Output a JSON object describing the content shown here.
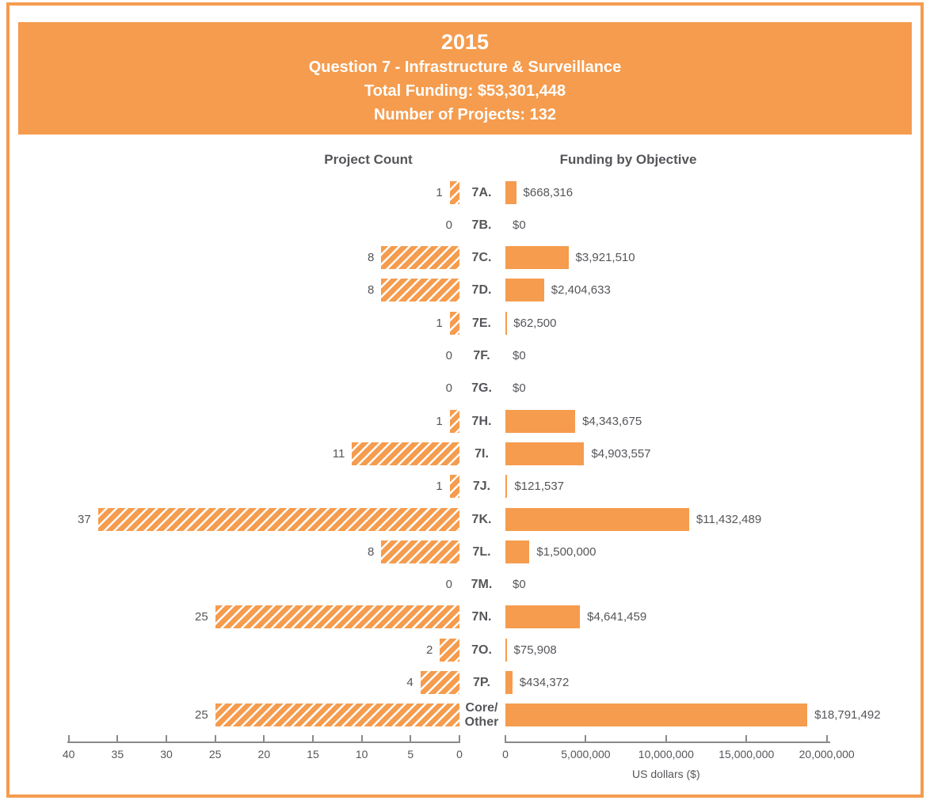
{
  "page": {
    "background": "#FFFFFF",
    "border_color": "#F59C4E"
  },
  "header": {
    "title": "2015",
    "subtitle": "Question 7 - Infrastructure & Surveillance",
    "total_funding": "Total Funding: $53,301,448",
    "projects": "Number of Projects: 132",
    "bg_color": "#F59C4E",
    "text_color": "#FFFFFF"
  },
  "chart_data": {
    "type": "bar",
    "layout": "back-to-back-horizontal",
    "left_title": "Project Count",
    "right_title": "Funding by Objective",
    "categories": [
      "7A.",
      "7B.",
      "7C.",
      "7D.",
      "7E.",
      "7F.",
      "7G.",
      "7H.",
      "7I.",
      "7J.",
      "7K.",
      "7L.",
      "7M.",
      "7N.",
      "7O.",
      "7P.",
      "Core/\nOther"
    ],
    "series": [
      {
        "name": "Project Count",
        "style": "hatched",
        "values": [
          1,
          0,
          8,
          8,
          1,
          0,
          0,
          1,
          11,
          1,
          37,
          8,
          0,
          25,
          2,
          4,
          25
        ],
        "labels": [
          "1",
          "0",
          "8",
          "8",
          "1",
          "0",
          "0",
          "1",
          "11",
          "1",
          "37",
          "8",
          "0",
          "25",
          "2",
          "4",
          "25"
        ],
        "axis_ticks": [
          40,
          35,
          30,
          25,
          20,
          15,
          10,
          5,
          0
        ],
        "axis_max": 40,
        "direction": "right-to-left"
      },
      {
        "name": "Funding by Objective",
        "style": "solid",
        "values": [
          668316,
          0,
          3921510,
          2404633,
          62500,
          0,
          0,
          4343675,
          4903557,
          121537,
          11432489,
          1500000,
          0,
          4641459,
          75908,
          434372,
          18791492
        ],
        "labels": [
          "$668,316",
          "$0",
          "$3,921,510",
          "$2,404,633",
          "$62,500",
          "$0",
          "$0",
          "$4,343,675",
          "$4,903,557",
          "$121,537",
          "$11,432,489",
          "$1,500,000",
          "$0",
          "$4,641,459",
          "$75,908",
          "$434,372",
          "$18,791,492"
        ],
        "axis_ticks": [
          0,
          5000000,
          10000000,
          15000000,
          20000000
        ],
        "axis_tick_labels": [
          "0",
          "5,000,000",
          "10,000,000",
          "15,000,000",
          "20,000,000"
        ],
        "axis_max": 20000000,
        "xlabel": "US dollars ($)",
        "direction": "left-to-right"
      }
    ],
    "grid": false,
    "legend": false,
    "colors": {
      "bar": "#F59C4E",
      "hatch_stripe": "#FFFFFF",
      "text": "#55565A",
      "axis": "#8A8A8A"
    }
  }
}
